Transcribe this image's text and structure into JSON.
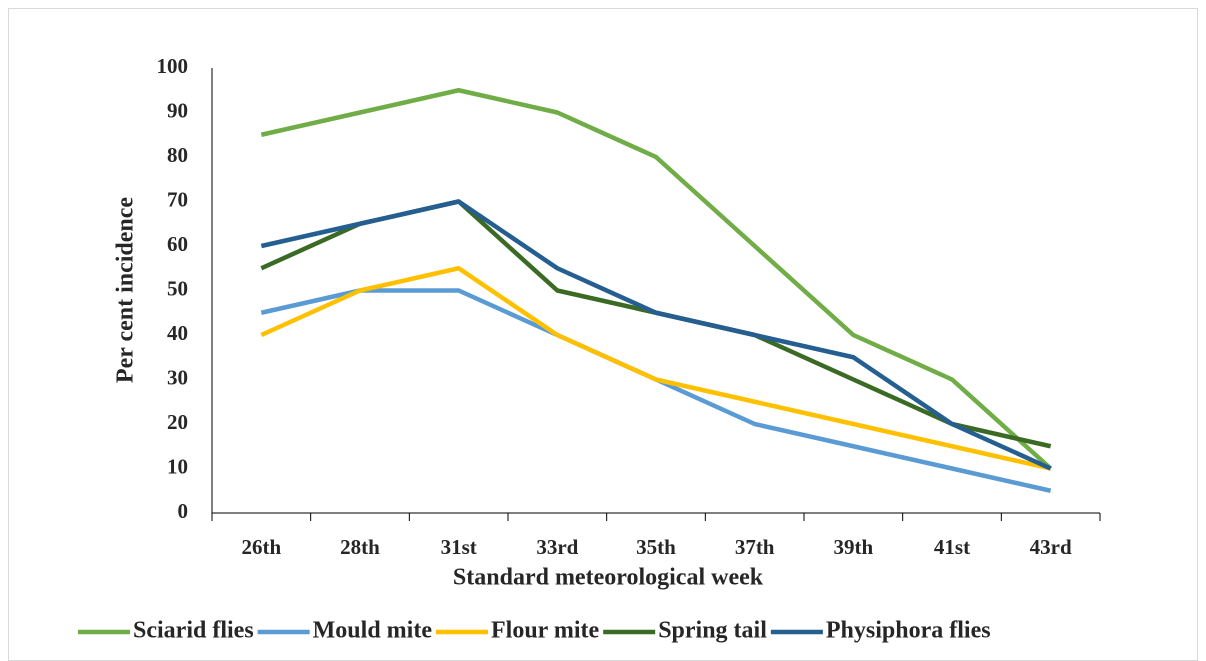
{
  "chart_data": {
    "type": "line",
    "x_label": "Standard meteorological week",
    "y_label": "Per cent incidence",
    "categories": [
      "26th",
      "28th",
      "31st",
      "33rd",
      "35th",
      "37th",
      "39th",
      "41st",
      "43rd"
    ],
    "series": [
      {
        "name": "Sciarid flies",
        "color": "#70ad47",
        "values": [
          85,
          90,
          95,
          90,
          80,
          60,
          40,
          30,
          10
        ]
      },
      {
        "name": "Mould mite",
        "color": "#5b9bd5",
        "values": [
          45,
          50,
          50,
          40,
          30,
          20,
          15,
          10,
          5
        ]
      },
      {
        "name": "Flour mite",
        "color": "#ffc000",
        "values": [
          40,
          50,
          55,
          40,
          30,
          25,
          20,
          15,
          10
        ]
      },
      {
        "name": "Spring tail",
        "color": "#3b6a25",
        "values": [
          55,
          65,
          70,
          50,
          45,
          40,
          30,
          20,
          15
        ]
      },
      {
        "name": "Physiphora flies",
        "color": "#255e91",
        "values": [
          60,
          65,
          70,
          55,
          45,
          40,
          35,
          20,
          10
        ]
      }
    ],
    "ylim": [
      0,
      100
    ],
    "yticks": [
      0,
      10,
      20,
      30,
      40,
      50,
      60,
      70,
      80,
      90,
      100
    ],
    "legend": "bottom"
  }
}
